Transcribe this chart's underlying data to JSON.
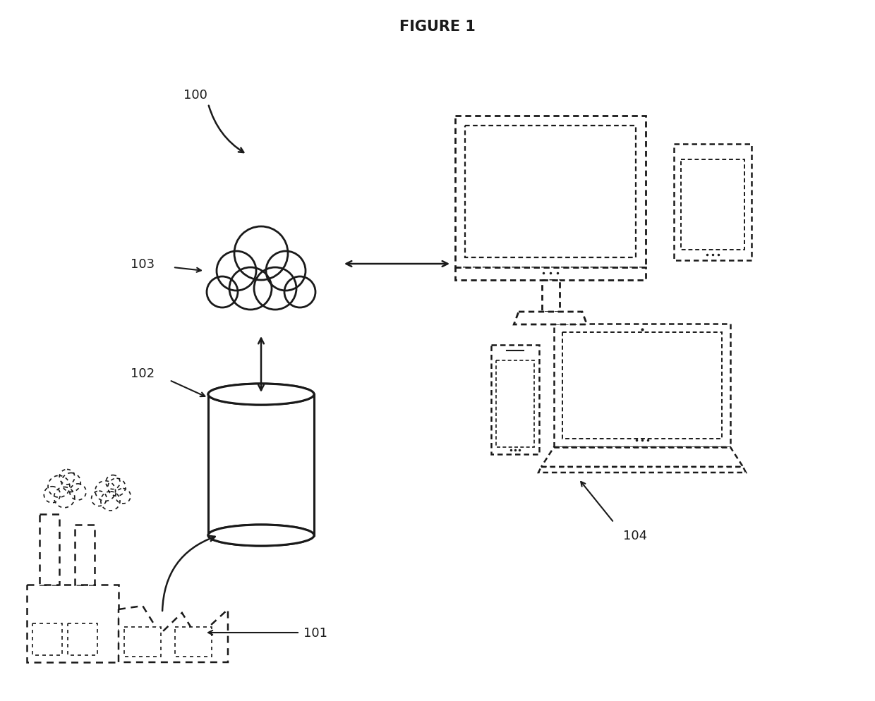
{
  "title": "FIGURE 1",
  "title_fontsize": 15,
  "title_fontweight": "bold",
  "background_color": "#ffffff",
  "line_color": "#1a1a1a",
  "label_100": "100",
  "label_101": "101",
  "label_102": "102",
  "label_103": "103",
  "label_104": "104",
  "label_fontsize": 13
}
